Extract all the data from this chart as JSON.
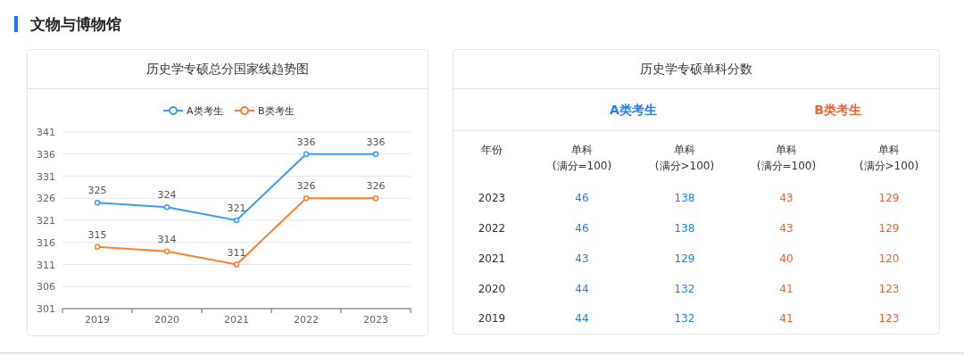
{
  "chart_data": [
    {
      "type": "line",
      "title": "历史学专硕总分国家线趋势图",
      "annotations": [
        "文物与博物馆"
      ],
      "categories": [
        "2019",
        "2020",
        "2021",
        "2022",
        "2023"
      ],
      "series": [
        {
          "name": "A类考生",
          "color": "#3a9cff",
          "values": [
            325,
            324,
            321,
            336,
            336
          ]
        },
        {
          "name": "B类考生",
          "color": "#ff7f2e",
          "values": [
            315,
            314,
            311,
            326,
            326
          ]
        }
      ],
      "ylim": [
        301,
        341
      ],
      "yticks": [
        301,
        306,
        311,
        316,
        321,
        326,
        331,
        336,
        341
      ],
      "grid": "y",
      "legend": "top",
      "marker": "circle",
      "line_style": "solid",
      "data_labels": true
    },
    {
      "type": "heatmap",
      "title": "历史学专硕单科分数",
      "ylabel": "年份",
      "annotations": [
        "A类考生",
        "B类考生"
      ],
      "categories": [
        "单科\n(满分=100)",
        "单科\n(满分>100)",
        "单科\n(满分=100)",
        "单科\n(满分>100)"
      ],
      "colors": [
        "#1f7ef5",
        "#1f7ef5",
        "#f5622d",
        "#f5622d"
      ],
      "data_labels": true,
      "y_categories": [
        "2023",
        "2022",
        "2021",
        "2020",
        "2019"
      ],
      "cells": [
        [
          46,
          138,
          43,
          129
        ],
        [
          46,
          138,
          43,
          129
        ],
        [
          43,
          129,
          40,
          120
        ],
        [
          44,
          132,
          41,
          123
        ],
        [
          44,
          132,
          41,
          123
        ]
      ]
    }
  ]
}
